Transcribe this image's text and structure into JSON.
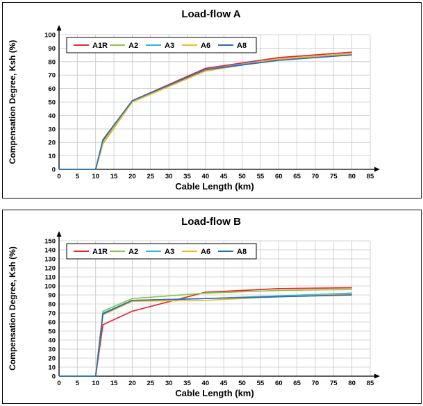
{
  "chart_data": [
    {
      "type": "line",
      "title": "Load-flow A",
      "xlabel": "Cable Length (km)",
      "ylabel": "Compensation Degree, Ksh (%)",
      "xlim": [
        0,
        85
      ],
      "ylim": [
        0,
        100
      ],
      "x_ticks": [
        0,
        5,
        10,
        15,
        20,
        25,
        30,
        35,
        40,
        45,
        50,
        55,
        60,
        65,
        70,
        75,
        80,
        85
      ],
      "y_ticks": [
        0,
        10,
        20,
        30,
        40,
        50,
        60,
        70,
        80,
        90,
        100
      ],
      "grid": true,
      "legend_position": "top-left",
      "series": [
        {
          "name": "A1R",
          "color": "#e8262b",
          "x": [
            0,
            10,
            12,
            20,
            40,
            60,
            80
          ],
          "y": [
            0,
            0,
            21,
            51,
            75,
            83,
            87
          ]
        },
        {
          "name": "A2",
          "color": "#8dc63f",
          "x": [
            0,
            10,
            12,
            20,
            40,
            60,
            80
          ],
          "y": [
            0,
            0,
            19,
            50,
            73,
            82,
            86
          ]
        },
        {
          "name": "A3",
          "color": "#29b6e8",
          "x": [
            0,
            10,
            12,
            20,
            40,
            60,
            80
          ],
          "y": [
            0,
            0,
            22,
            51,
            74,
            82,
            86
          ]
        },
        {
          "name": "A6",
          "color": "#f5b820",
          "x": [
            0,
            10,
            12,
            20,
            40,
            60,
            80
          ],
          "y": [
            0,
            0,
            20,
            50,
            73,
            82,
            86
          ]
        },
        {
          "name": "A8",
          "color": "#2a6db5",
          "x": [
            0,
            10,
            12,
            20,
            40,
            60,
            80
          ],
          "y": [
            0,
            0,
            22,
            51,
            74,
            81,
            85
          ]
        }
      ]
    },
    {
      "type": "line",
      "title": "Load-flow B",
      "xlabel": "Cable Length (km)",
      "ylabel": "Compensation Degree, Ksh (%)",
      "xlim": [
        0,
        85
      ],
      "ylim": [
        0,
        150
      ],
      "x_ticks": [
        0,
        5,
        10,
        15,
        20,
        25,
        30,
        35,
        40,
        45,
        50,
        55,
        60,
        65,
        70,
        75,
        80,
        85
      ],
      "y_ticks": [
        0,
        10,
        20,
        30,
        40,
        50,
        60,
        70,
        80,
        90,
        100,
        110,
        120,
        130,
        140,
        150
      ],
      "grid": true,
      "legend_position": "top",
      "series": [
        {
          "name": "A1R",
          "color": "#e8262b",
          "x": [
            0,
            10,
            12,
            20,
            40,
            60,
            80
          ],
          "y": [
            0,
            0,
            57,
            72,
            93,
            97,
            98
          ]
        },
        {
          "name": "A2",
          "color": "#8dc63f",
          "x": [
            0,
            10,
            12,
            20,
            40,
            60,
            80
          ],
          "y": [
            0,
            0,
            72,
            86,
            92,
            95,
            96
          ]
        },
        {
          "name": "A3",
          "color": "#29b6e8",
          "x": [
            0,
            10,
            12,
            20,
            40,
            60,
            80
          ],
          "y": [
            0,
            0,
            70,
            84,
            86,
            89,
            92
          ]
        },
        {
          "name": "A6",
          "color": "#f5b820",
          "x": [
            0,
            10,
            12,
            20,
            40,
            60,
            80
          ],
          "y": [
            0,
            0,
            68,
            83,
            84,
            88,
            91
          ]
        },
        {
          "name": "A8",
          "color": "#2a6db5",
          "x": [
            0,
            10,
            12,
            20,
            40,
            60,
            80
          ],
          "y": [
            0,
            0,
            69,
            84,
            86,
            88,
            90
          ]
        }
      ]
    }
  ]
}
